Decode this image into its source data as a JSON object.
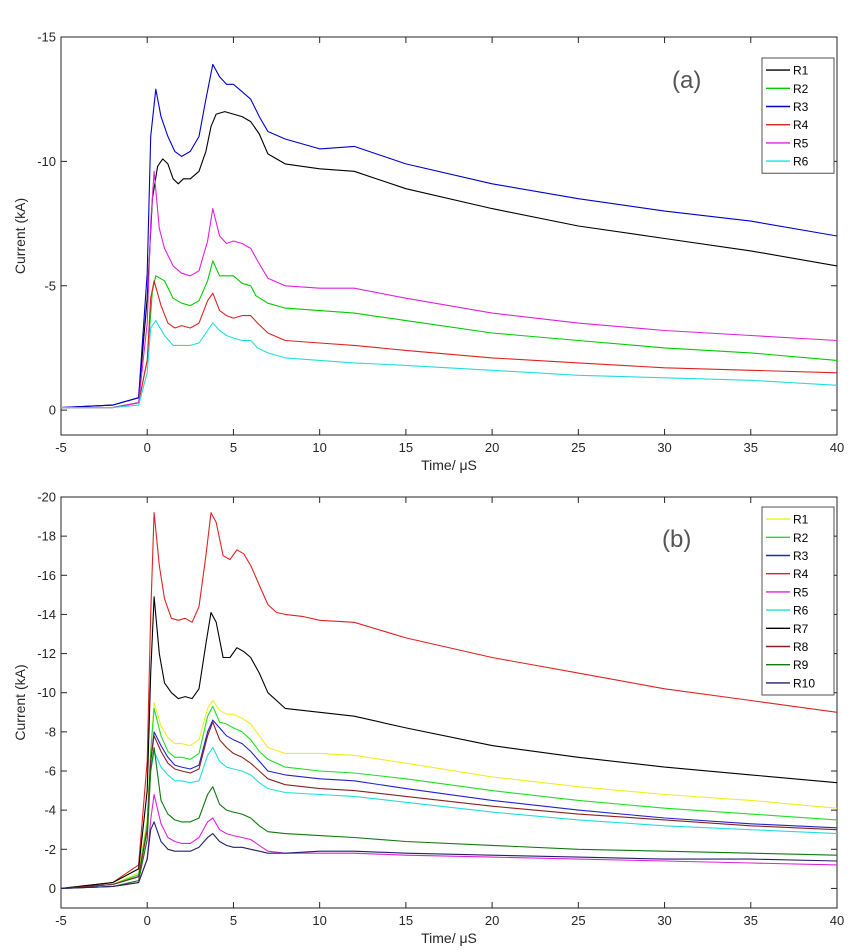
{
  "chart_data": [
    {
      "type": "line",
      "panel_label": "(a)",
      "xlabel": "Time/ μS",
      "ylabel": "Current (kA)",
      "xlim": [
        -5,
        40
      ],
      "ylim": [
        1,
        -15
      ],
      "y_axis_reversed": true,
      "x_ticks": [
        -5,
        0,
        5,
        10,
        15,
        20,
        25,
        30,
        35,
        40
      ],
      "y_ticks": [
        0,
        -5,
        -10,
        -15
      ],
      "grid": false,
      "legend_position": "top-right",
      "series": [
        {
          "name": "R1",
          "color": "#000000",
          "x": [
            -5,
            -2,
            -0.5,
            0,
            0.3,
            0.6,
            0.9,
            1.2,
            1.5,
            1.8,
            2.1,
            2.5,
            3,
            3.4,
            3.7,
            4,
            4.5,
            5,
            5.5,
            6,
            6.5,
            7,
            8,
            10,
            12,
            15,
            20,
            25,
            30,
            35,
            40
          ],
          "y": [
            -0.1,
            -0.2,
            -0.5,
            -4.5,
            -8.5,
            -9.8,
            -10.1,
            -9.9,
            -9.3,
            -9.1,
            -9.3,
            -9.3,
            -9.6,
            -10.4,
            -11.4,
            -11.9,
            -12.0,
            -11.9,
            -11.8,
            -11.6,
            -11.1,
            -10.3,
            -9.9,
            -9.7,
            -9.6,
            -8.9,
            -8.1,
            -7.4,
            -6.9,
            -6.4,
            -5.8
          ]
        },
        {
          "name": "R2",
          "color": "#00cc00",
          "x": [
            -5,
            -2,
            -0.5,
            0,
            0.3,
            0.5,
            1,
            1.5,
            2,
            2.5,
            3,
            3.5,
            3.8,
            4.2,
            4.6,
            5,
            5.5,
            6,
            6.3,
            7,
            8,
            10,
            12,
            15,
            20,
            25,
            30,
            35,
            40
          ],
          "y": [
            -0.1,
            -0.1,
            -0.3,
            -2.0,
            -4.8,
            -5.4,
            -5.2,
            -4.5,
            -4.3,
            -4.2,
            -4.4,
            -5.2,
            -6.0,
            -5.4,
            -5.4,
            -5.4,
            -5.1,
            -5.0,
            -4.6,
            -4.3,
            -4.1,
            -4.0,
            -3.9,
            -3.6,
            -3.1,
            -2.8,
            -2.5,
            -2.3,
            -2.0
          ]
        },
        {
          "name": "R3",
          "color": "#0000cc",
          "x": [
            -5,
            -2,
            -0.5,
            0,
            0.2,
            0.5,
            0.8,
            1.2,
            1.6,
            2,
            2.5,
            3,
            3.4,
            3.8,
            4.2,
            4.6,
            5,
            5.5,
            6,
            6.5,
            7,
            8,
            10,
            12,
            15,
            20,
            25,
            30,
            35,
            40
          ],
          "y": [
            -0.1,
            -0.2,
            -0.5,
            -5.5,
            -11.0,
            -12.9,
            -11.8,
            -11.0,
            -10.4,
            -10.2,
            -10.4,
            -11.0,
            -12.5,
            -13.9,
            -13.4,
            -13.1,
            -13.1,
            -12.8,
            -12.5,
            -11.8,
            -11.2,
            -10.9,
            -10.5,
            -10.6,
            -9.9,
            -9.1,
            -8.5,
            -8.0,
            -7.6,
            -7.0
          ]
        },
        {
          "name": "R4",
          "color": "#dd2222",
          "x": [
            -5,
            -2,
            -0.5,
            0,
            0.2,
            0.4,
            0.8,
            1.2,
            1.6,
            2,
            2.5,
            3,
            3.5,
            3.8,
            4.2,
            4.6,
            5,
            5.5,
            6,
            6.4,
            7,
            8,
            10,
            12,
            15,
            20,
            25,
            30,
            35,
            40
          ],
          "y": [
            -0.1,
            -0.1,
            -0.3,
            -2.0,
            -4.5,
            -5.2,
            -4.2,
            -3.5,
            -3.3,
            -3.4,
            -3.3,
            -3.5,
            -4.4,
            -4.7,
            -4.0,
            -3.8,
            -3.7,
            -3.8,
            -3.8,
            -3.5,
            -3.1,
            -2.8,
            -2.7,
            -2.6,
            -2.4,
            -2.1,
            -1.9,
            -1.7,
            -1.6,
            -1.5
          ]
        },
        {
          "name": "R5",
          "color": "#dd22dd",
          "x": [
            -5,
            -2,
            -0.5,
            0,
            0.2,
            0.4,
            0.7,
            1,
            1.5,
            2,
            2.5,
            3,
            3.5,
            3.8,
            4.2,
            4.6,
            5,
            5.5,
            6,
            6.4,
            7,
            8,
            10,
            12,
            15,
            20,
            25,
            30,
            35,
            40
          ],
          "y": [
            -0.1,
            -0.1,
            -0.3,
            -3.5,
            -7.5,
            -9.6,
            -7.3,
            -6.5,
            -5.8,
            -5.5,
            -5.4,
            -5.6,
            -6.8,
            -8.1,
            -7.0,
            -6.7,
            -6.8,
            -6.7,
            -6.5,
            -6.0,
            -5.3,
            -5.0,
            -4.9,
            -4.9,
            -4.5,
            -3.9,
            -3.5,
            -3.2,
            -3.0,
            -2.8
          ]
        },
        {
          "name": "R6",
          "color": "#22dddd",
          "x": [
            -5,
            -2,
            -0.5,
            0,
            0.2,
            0.5,
            1,
            1.5,
            2,
            2.5,
            3,
            3.5,
            3.8,
            4.2,
            4.6,
            5,
            5.5,
            6,
            6.4,
            7,
            8,
            10,
            12,
            15,
            20,
            25,
            30,
            35,
            40
          ],
          "y": [
            -0.1,
            -0.1,
            -0.2,
            -1.5,
            -3.3,
            -3.6,
            -3.0,
            -2.6,
            -2.6,
            -2.6,
            -2.7,
            -3.2,
            -3.5,
            -3.2,
            -3.0,
            -2.9,
            -2.8,
            -2.8,
            -2.5,
            -2.3,
            -2.1,
            -2.0,
            -1.9,
            -1.8,
            -1.6,
            -1.4,
            -1.3,
            -1.2,
            -1.0
          ]
        }
      ]
    },
    {
      "type": "line",
      "panel_label": "(b)",
      "xlabel": "Time/ μS",
      "ylabel": "Current (kA)",
      "xlim": [
        -5,
        40
      ],
      "ylim": [
        1,
        -20
      ],
      "y_axis_reversed": true,
      "x_ticks": [
        -5,
        0,
        5,
        10,
        15,
        20,
        25,
        30,
        35,
        40
      ],
      "y_ticks": [
        0,
        -2,
        -4,
        -6,
        -8,
        -10,
        -12,
        -14,
        -16,
        -18,
        -20
      ],
      "grid": false,
      "legend_position": "top-right",
      "series": [
        {
          "name": "R1",
          "color": "#eeee22",
          "x": [
            -5,
            -2,
            -0.5,
            0,
            0.2,
            0.4,
            0.8,
            1.2,
            1.6,
            2,
            2.5,
            3,
            3.5,
            3.8,
            4.2,
            4.6,
            5,
            5.5,
            6,
            6.5,
            7,
            8,
            10,
            12,
            15,
            20,
            25,
            30,
            35,
            40
          ],
          "y": [
            0,
            -0.2,
            -0.8,
            -3.5,
            -7.0,
            -9.5,
            -8.3,
            -7.7,
            -7.4,
            -7.4,
            -7.3,
            -7.6,
            -9.2,
            -9.6,
            -9.1,
            -8.9,
            -8.9,
            -8.7,
            -8.4,
            -7.8,
            -7.2,
            -6.9,
            -6.9,
            -6.8,
            -6.4,
            -5.7,
            -5.2,
            -4.8,
            -4.5,
            -4.1
          ]
        },
        {
          "name": "R2",
          "color": "#22dd22",
          "x": [
            -5,
            -2,
            -0.5,
            0,
            0.2,
            0.4,
            0.8,
            1.2,
            1.6,
            2,
            2.5,
            3,
            3.5,
            3.8,
            4.2,
            4.6,
            5,
            5.5,
            6,
            6.5,
            7,
            8,
            10,
            12,
            15,
            20,
            25,
            30,
            35,
            40
          ],
          "y": [
            0,
            -0.2,
            -0.7,
            -3.3,
            -7.0,
            -9.2,
            -7.8,
            -7.0,
            -6.7,
            -6.7,
            -6.6,
            -6.9,
            -8.8,
            -9.3,
            -8.5,
            -8.4,
            -8.2,
            -8.0,
            -7.6,
            -7.0,
            -6.6,
            -6.2,
            -6.0,
            -5.9,
            -5.6,
            -5.0,
            -4.5,
            -4.1,
            -3.8,
            -3.5
          ]
        },
        {
          "name": "R3",
          "color": "#2222cc",
          "x": [
            -5,
            -2,
            -0.5,
            0,
            0.2,
            0.4,
            0.8,
            1.2,
            1.6,
            2,
            2.5,
            3,
            3.5,
            3.8,
            4.2,
            4.6,
            5,
            5.5,
            6,
            6.5,
            7,
            8,
            10,
            12,
            15,
            20,
            25,
            30,
            35,
            40
          ],
          "y": [
            0,
            -0.2,
            -0.6,
            -3.0,
            -6.5,
            -8.0,
            -7.3,
            -6.7,
            -6.3,
            -6.2,
            -6.1,
            -6.3,
            -8.0,
            -8.6,
            -8.2,
            -7.8,
            -7.6,
            -7.4,
            -7.0,
            -6.5,
            -6.0,
            -5.8,
            -5.6,
            -5.5,
            -5.1,
            -4.5,
            -4.0,
            -3.6,
            -3.3,
            -3.1
          ]
        },
        {
          "name": "R4",
          "color": "#dd2222",
          "x": [
            -5,
            -2,
            -0.5,
            0,
            0.2,
            0.4,
            0.7,
            1,
            1.4,
            1.8,
            2.2,
            2.6,
            3,
            3.4,
            3.7,
            4,
            4.4,
            4.8,
            5.2,
            5.6,
            6,
            6.5,
            7,
            7.5,
            8,
            9,
            10,
            12,
            15,
            20,
            25,
            30,
            35,
            40
          ],
          "y": [
            0,
            -0.3,
            -1.2,
            -6.5,
            -14.0,
            -19.2,
            -16.5,
            -14.8,
            -13.8,
            -13.7,
            -13.8,
            -13.6,
            -14.4,
            -17.0,
            -19.2,
            -18.7,
            -17.0,
            -16.8,
            -17.3,
            -17.1,
            -16.5,
            -15.5,
            -14.5,
            -14.1,
            -14.0,
            -13.9,
            -13.7,
            -13.6,
            -12.8,
            -11.8,
            -11.0,
            -10.2,
            -9.6,
            -9.0
          ]
        },
        {
          "name": "R5",
          "color": "#dd22dd",
          "x": [
            -5,
            -2,
            -0.5,
            0,
            0.2,
            0.4,
            0.8,
            1.2,
            1.6,
            2,
            2.5,
            3,
            3.5,
            3.8,
            4.2,
            4.6,
            5,
            5.5,
            6,
            6.5,
            7,
            8,
            10,
            12,
            15,
            20,
            25,
            30,
            35,
            40
          ],
          "y": [
            0,
            -0.1,
            -0.3,
            -1.5,
            -3.5,
            -4.8,
            -3.3,
            -2.6,
            -2.4,
            -2.3,
            -2.3,
            -2.6,
            -3.4,
            -3.6,
            -3.0,
            -2.8,
            -2.7,
            -2.6,
            -2.5,
            -2.2,
            -1.9,
            -1.8,
            -1.8,
            -1.8,
            -1.7,
            -1.6,
            -1.5,
            -1.4,
            -1.3,
            -1.2
          ]
        },
        {
          "name": "R6",
          "color": "#22dddd",
          "x": [
            -5,
            -2,
            -0.5,
            0,
            0.2,
            0.4,
            0.8,
            1.2,
            1.6,
            2,
            2.5,
            3,
            3.5,
            3.8,
            4.2,
            4.6,
            5,
            5.5,
            6,
            6.5,
            7,
            8,
            10,
            12,
            15,
            20,
            25,
            30,
            35,
            40
          ],
          "y": [
            0,
            -0.2,
            -0.6,
            -3.0,
            -6.0,
            -7.0,
            -6.2,
            -5.8,
            -5.5,
            -5.5,
            -5.4,
            -5.5,
            -6.8,
            -7.2,
            -6.5,
            -6.2,
            -6.1,
            -6.0,
            -5.8,
            -5.4,
            -5.1,
            -4.9,
            -4.8,
            -4.7,
            -4.4,
            -3.9,
            -3.5,
            -3.2,
            -3.0,
            -2.8
          ]
        },
        {
          "name": "R7",
          "color": "#000000",
          "x": [
            -5,
            -2,
            -0.5,
            0,
            0.2,
            0.4,
            0.7,
            1,
            1.4,
            1.8,
            2.2,
            2.6,
            3,
            3.4,
            3.7,
            4,
            4.4,
            4.8,
            5.2,
            5.6,
            6,
            6.5,
            7,
            8,
            10,
            12,
            15,
            20,
            25,
            30,
            35,
            40
          ],
          "y": [
            0,
            -0.3,
            -1.0,
            -5.0,
            -11.0,
            -14.9,
            -12.0,
            -10.5,
            -10.0,
            -9.7,
            -9.8,
            -9.7,
            -10.2,
            -12.5,
            -14.1,
            -13.6,
            -11.8,
            -11.8,
            -12.3,
            -12.1,
            -11.8,
            -11.0,
            -10.0,
            -9.2,
            -9.0,
            -8.8,
            -8.2,
            -7.3,
            -6.7,
            -6.2,
            -5.8,
            -5.4
          ]
        },
        {
          "name": "R8",
          "color": "#882222",
          "x": [
            -5,
            -2,
            -0.5,
            0,
            0.2,
            0.4,
            0.8,
            1.2,
            1.6,
            2,
            2.5,
            3,
            3.5,
            3.8,
            4.2,
            4.6,
            5,
            5.5,
            6,
            6.5,
            7,
            8,
            10,
            12,
            15,
            20,
            25,
            30,
            35,
            40
          ],
          "y": [
            0,
            -0.2,
            -0.6,
            -3.0,
            -6.5,
            -7.8,
            -7.0,
            -6.4,
            -6.1,
            -6.0,
            -5.9,
            -6.1,
            -7.8,
            -8.5,
            -7.6,
            -7.2,
            -6.9,
            -6.7,
            -6.4,
            -6.0,
            -5.6,
            -5.3,
            -5.1,
            -5.0,
            -4.7,
            -4.2,
            -3.8,
            -3.5,
            -3.2,
            -3.0
          ]
        },
        {
          "name": "R9",
          "color": "#117711",
          "x": [
            -5,
            -2,
            -0.5,
            0,
            0.2,
            0.4,
            0.8,
            1.2,
            1.6,
            2,
            2.5,
            3,
            3.5,
            3.8,
            4.2,
            4.6,
            5,
            5.5,
            6,
            6.5,
            7,
            8,
            10,
            12,
            15,
            20,
            25,
            30,
            35,
            40
          ],
          "y": [
            0,
            -0.1,
            -0.4,
            -2.5,
            -6.0,
            -7.2,
            -4.5,
            -3.8,
            -3.5,
            -3.4,
            -3.4,
            -3.6,
            -4.8,
            -5.2,
            -4.3,
            -4.0,
            -3.9,
            -3.8,
            -3.6,
            -3.2,
            -2.9,
            -2.8,
            -2.7,
            -2.6,
            -2.4,
            -2.2,
            -2.0,
            -1.9,
            -1.8,
            -1.7
          ]
        },
        {
          "name": "R10",
          "color": "#222266",
          "x": [
            -5,
            -2,
            -0.5,
            0,
            0.2,
            0.4,
            0.8,
            1.2,
            1.6,
            2,
            2.5,
            3,
            3.5,
            3.8,
            4.2,
            4.6,
            5,
            5.5,
            6,
            6.5,
            7,
            8,
            10,
            12,
            15,
            20,
            25,
            30,
            35,
            40
          ],
          "y": [
            0,
            -0.1,
            -0.3,
            -1.5,
            -3.0,
            -3.4,
            -2.4,
            -2.0,
            -1.9,
            -1.9,
            -1.9,
            -2.1,
            -2.6,
            -2.8,
            -2.4,
            -2.2,
            -2.1,
            -2.1,
            -2.0,
            -1.9,
            -1.8,
            -1.8,
            -1.9,
            -1.9,
            -1.8,
            -1.7,
            -1.6,
            -1.5,
            -1.5,
            -1.4
          ]
        }
      ]
    }
  ]
}
